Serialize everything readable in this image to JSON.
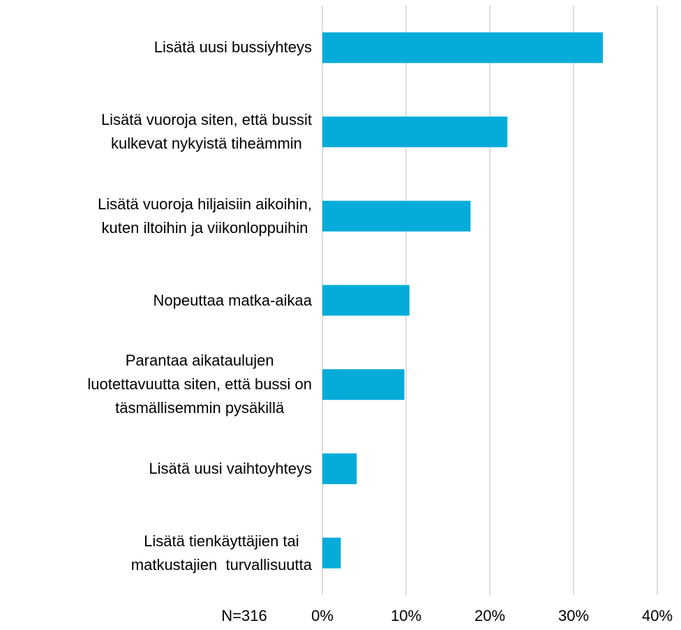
{
  "chart_data": {
    "type": "hbar",
    "categories": [
      "Lisätä uusi bussiyhteys",
      "Lisätä vuoroja siten, että bussit\nkulkevat nykyistä tiheämmin",
      "Lisätä vuoroja hiljaisiin aikoihin,\nkuten iltoihin ja viikonloppuihin",
      "Nopeuttaa matka-aikaa",
      "Parantaa aikataulujen\nluotettavuutta siten, että bussi on\ntäsmällisemmin pysäkillä",
      "Lisätä uusi vaihtoyhteys",
      "Lisätä tienkäyttäjien tai\nmatkustajien  turvallisuutta"
    ],
    "values": [
      33.5,
      22.1,
      17.7,
      10.4,
      9.8,
      4.1,
      2.2
    ],
    "color": "#05acd9",
    "xlim": [
      0,
      40
    ],
    "xticks": [
      {
        "value": 0,
        "label": "0%"
      },
      {
        "value": 10,
        "label": "10%"
      },
      {
        "value": 20,
        "label": "20%"
      },
      {
        "value": 30,
        "label": "30%"
      },
      {
        "value": 40,
        "label": "40%"
      }
    ],
    "grid": true,
    "annotation": "N=316"
  }
}
